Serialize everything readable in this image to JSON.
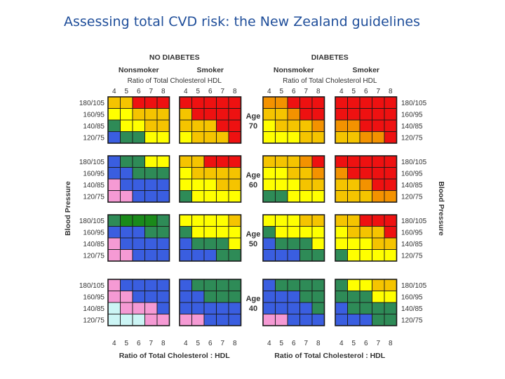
{
  "slide": {
    "title": "Assessing total CVD risk: the New Zealand guidelines"
  },
  "colors": {
    "light_cyan": "#ccf5f5",
    "pink": "#f59ad4",
    "blue": "#3a5ee0",
    "green": "#2e8b57",
    "dark_green": "#1a8a1a",
    "yellow": "#ffff00",
    "gold": "#f5c400",
    "orange": "#f39200",
    "red": "#ee1111"
  },
  "chart_data": {
    "type": "heatmap",
    "group_headers": [
      "NO DIABETES",
      "DIABETES"
    ],
    "subgroup_headers": [
      "Nonsmoker",
      "Smoker"
    ],
    "ratio_header": "Ratio of Total Cholesterol HDL",
    "x_ticks": [
      "4",
      "5",
      "6",
      "7",
      "8"
    ],
    "x_axis_label": "Ratio of Total Cholesterol : HDL",
    "bp_ticks": [
      "180/105",
      "160/95",
      "140/85",
      "120/75"
    ],
    "y_axis_label": "Blood Pressure",
    "age_word": "Age",
    "age_groups": [
      "70",
      "60",
      "50",
      "40"
    ],
    "legend_note": "Cell value = color class: 0 light cyan, 1 pink, 2 blue, 3 green, 4 dark green, 5 yellow, 6 gold, 7 orange, 8 red",
    "panels": [
      [
        [
          [
            6,
            6,
            8,
            8,
            8
          ],
          [
            5,
            5,
            6,
            6,
            6
          ],
          [
            3,
            5,
            5,
            6,
            6
          ],
          [
            2,
            3,
            3,
            5,
            5
          ]
        ],
        [
          [
            8,
            8,
            8,
            8,
            8
          ],
          [
            6,
            8,
            8,
            8,
            8
          ],
          [
            6,
            6,
            6,
            8,
            8
          ],
          [
            5,
            6,
            6,
            6,
            8
          ]
        ],
        [
          [
            7,
            7,
            8,
            8,
            8
          ],
          [
            6,
            6,
            7,
            8,
            8
          ],
          [
            5,
            6,
            6,
            6,
            7
          ],
          [
            5,
            5,
            5,
            6,
            6
          ]
        ],
        [
          [
            8,
            8,
            8,
            8,
            8
          ],
          [
            8,
            8,
            8,
            8,
            8
          ],
          [
            7,
            7,
            8,
            8,
            8
          ],
          [
            6,
            6,
            7,
            7,
            8
          ]
        ]
      ],
      [
        [
          [
            2,
            3,
            3,
            5,
            5
          ],
          [
            2,
            2,
            3,
            3,
            3
          ],
          [
            1,
            2,
            2,
            2,
            2
          ],
          [
            1,
            1,
            2,
            2,
            2
          ]
        ],
        [
          [
            6,
            6,
            8,
            8,
            8
          ],
          [
            5,
            6,
            6,
            6,
            6
          ],
          [
            5,
            5,
            5,
            6,
            6
          ],
          [
            3,
            5,
            5,
            5,
            5
          ]
        ],
        [
          [
            6,
            6,
            6,
            7,
            8
          ],
          [
            5,
            5,
            6,
            6,
            7
          ],
          [
            5,
            5,
            5,
            6,
            6
          ],
          [
            3,
            3,
            5,
            5,
            5
          ]
        ],
        [
          [
            8,
            8,
            8,
            8,
            8
          ],
          [
            7,
            8,
            8,
            8,
            8
          ],
          [
            6,
            6,
            7,
            8,
            8
          ],
          [
            6,
            6,
            6,
            7,
            7
          ]
        ]
      ],
      [
        [
          [
            3,
            4,
            4,
            4,
            3
          ],
          [
            2,
            2,
            2,
            3,
            3
          ],
          [
            1,
            2,
            2,
            2,
            2
          ],
          [
            1,
            1,
            2,
            2,
            2
          ]
        ],
        [
          [
            5,
            5,
            5,
            5,
            6
          ],
          [
            3,
            5,
            5,
            5,
            5
          ],
          [
            2,
            3,
            3,
            3,
            5
          ],
          [
            2,
            2,
            2,
            3,
            3
          ]
        ],
        [
          [
            5,
            5,
            5,
            6,
            6
          ],
          [
            3,
            5,
            5,
            5,
            5
          ],
          [
            2,
            3,
            3,
            3,
            5
          ],
          [
            2,
            2,
            2,
            3,
            3
          ]
        ],
        [
          [
            6,
            6,
            8,
            8,
            8
          ],
          [
            5,
            6,
            6,
            6,
            8
          ],
          [
            5,
            5,
            5,
            6,
            6
          ],
          [
            3,
            5,
            5,
            5,
            5
          ]
        ]
      ],
      [
        [
          [
            1,
            2,
            2,
            2,
            2
          ],
          [
            1,
            1,
            2,
            2,
            2
          ],
          [
            0,
            1,
            1,
            1,
            2
          ],
          [
            0,
            0,
            0,
            1,
            1
          ]
        ],
        [
          [
            2,
            3,
            3,
            3,
            3
          ],
          [
            2,
            2,
            3,
            3,
            3
          ],
          [
            2,
            2,
            2,
            2,
            2
          ],
          [
            1,
            1,
            2,
            2,
            2
          ]
        ],
        [
          [
            2,
            3,
            3,
            3,
            3
          ],
          [
            2,
            2,
            2,
            3,
            3
          ],
          [
            2,
            2,
            2,
            2,
            3
          ],
          [
            1,
            1,
            2,
            2,
            2
          ]
        ],
        [
          [
            3,
            5,
            5,
            6,
            6
          ],
          [
            3,
            3,
            3,
            5,
            5
          ],
          [
            2,
            3,
            3,
            3,
            3
          ],
          [
            2,
            2,
            2,
            3,
            3
          ]
        ]
      ]
    ]
  }
}
